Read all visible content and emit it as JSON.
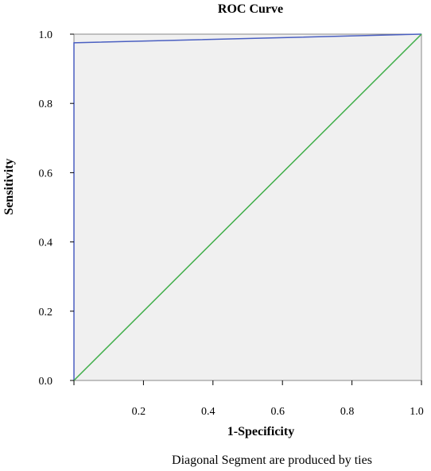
{
  "chart_data": {
    "type": "line",
    "title": "ROC Curve",
    "xlabel": "1-Specificity",
    "ylabel": "Sensitivity",
    "xlim": [
      0,
      1
    ],
    "ylim": [
      0,
      1
    ],
    "x_ticks": [
      "0.2",
      "0.4",
      "0.6",
      "0.8",
      "1.0"
    ],
    "y_ticks": [
      "0.0",
      "0.2",
      "0.4",
      "0.6",
      "0.8",
      "1.0"
    ],
    "grid": false,
    "plot_background": "#f0f0f0",
    "series": [
      {
        "color": "#4a5fc1",
        "points": [
          [
            0,
            0
          ],
          [
            0,
            0.975
          ],
          [
            1,
            1
          ]
        ]
      },
      {
        "color": "#3fae49",
        "points": [
          [
            0,
            0
          ],
          [
            1,
            1
          ]
        ]
      }
    ],
    "footnote": "Diagonal Segment are produced by ties"
  }
}
